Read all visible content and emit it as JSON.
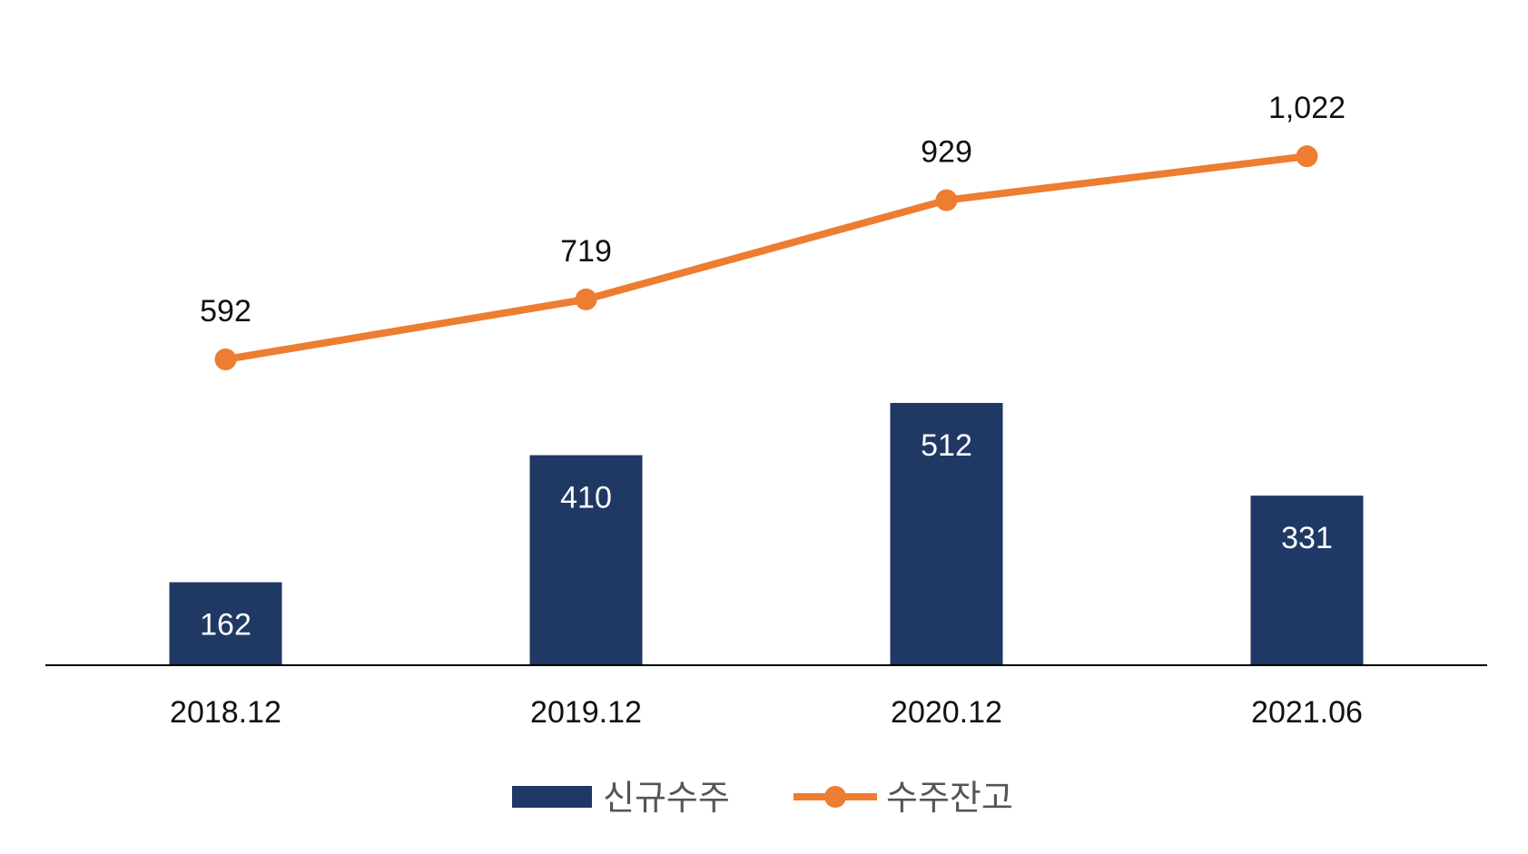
{
  "chart_data": {
    "type": "bar",
    "categories": [
      "2018.12",
      "2019.12",
      "2020.12",
      "2021.06"
    ],
    "series": [
      {
        "name": "신규수주",
        "type": "bar",
        "values": [
          162,
          410,
          512,
          331
        ],
        "labels": [
          "162",
          "410",
          "512",
          "331"
        ],
        "color": "#203864"
      },
      {
        "name": "수주잔고",
        "type": "line",
        "values": [
          592,
          719,
          929,
          1022
        ],
        "labels": [
          "592",
          "719",
          "929",
          "1,022"
        ],
        "color": "#ED7D31"
      }
    ],
    "title": "",
    "xlabel": "",
    "ylabel": "",
    "grid": false,
    "legend": "bottom",
    "axis_color": "#000000"
  }
}
